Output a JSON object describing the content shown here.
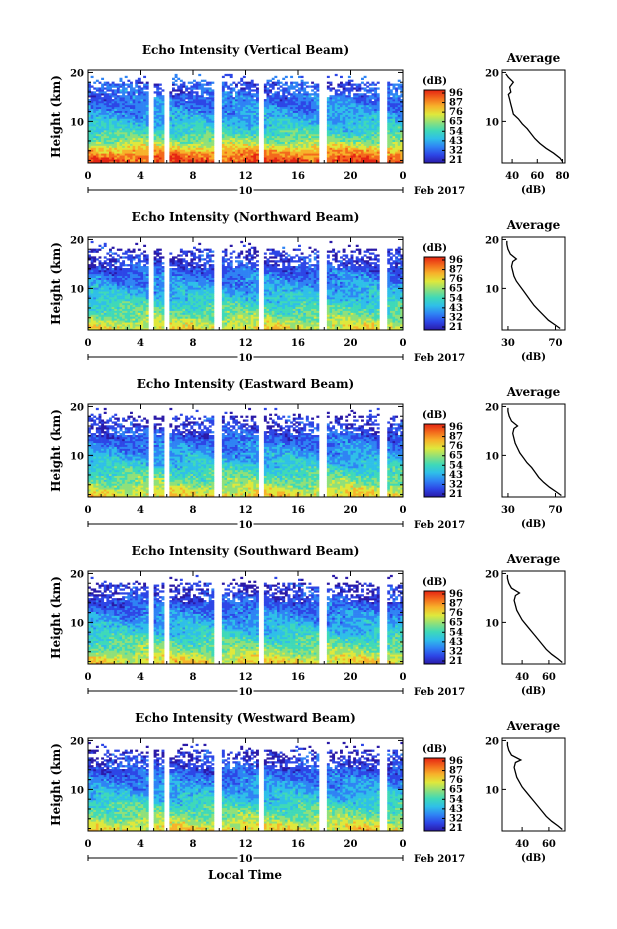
{
  "figure": {
    "date_tick": "10",
    "month_label": "Feb 2017",
    "xlabel": "Local Time",
    "colorbar_unit": "(dB)",
    "colorbar_ticks": [
      "96",
      "87",
      "76",
      "65",
      "54",
      "43",
      "32",
      "21"
    ],
    "colormap": [
      "#2a1aa8",
      "#2d46e6",
      "#2f83f4",
      "#2fbfe8",
      "#3fd9b8",
      "#8fe07a",
      "#dfe83c",
      "#f7b22a",
      "#f36a1c",
      "#e52412"
    ]
  },
  "chart_data": [
    {
      "type": "heatmap",
      "title": "Echo Intensity (Vertical Beam)",
      "ylabel": "Height (km)",
      "x_ticks": [
        "0",
        "4",
        "8",
        "12",
        "16",
        "20",
        "0"
      ],
      "y_ticks": [
        "20",
        "10"
      ],
      "xlim": [
        0,
        24
      ],
      "ylim": [
        1.5,
        20.5
      ],
      "data_gaps_hours": [
        [
          4.6,
          5.0
        ],
        [
          5.8,
          6.2
        ],
        [
          9.7,
          10.1
        ],
        [
          13.0,
          13.4
        ],
        [
          17.7,
          18.1
        ],
        [
          22.3,
          22.7
        ]
      ],
      "intensity_profile_db": [
        [
          2,
          92
        ],
        [
          4,
          80
        ],
        [
          6,
          62
        ],
        [
          8,
          52
        ],
        [
          10,
          45
        ],
        [
          12,
          40
        ],
        [
          14,
          36
        ],
        [
          16,
          33
        ],
        [
          18,
          30
        ],
        [
          20,
          28
        ]
      ],
      "average": {
        "title": "Average",
        "xlabel": "(dB)",
        "x_ticks": [
          "40",
          "60",
          "80"
        ],
        "y_ticks": [
          "20",
          "10"
        ],
        "xlim": [
          32,
          82
        ],
        "profile": [
          [
            1.8,
            80
          ],
          [
            2.5,
            78
          ],
          [
            3.5,
            73
          ],
          [
            4.5,
            67
          ],
          [
            5.5,
            62
          ],
          [
            6.5,
            58
          ],
          [
            7.5,
            55
          ],
          [
            8.5,
            52
          ],
          [
            9.5,
            48
          ],
          [
            10.5,
            45
          ],
          [
            11.5,
            41
          ],
          [
            12.5,
            40
          ],
          [
            13.5,
            39
          ],
          [
            14.5,
            38
          ],
          [
            15.5,
            37
          ],
          [
            16,
            39
          ],
          [
            17,
            38
          ],
          [
            18,
            41
          ],
          [
            19,
            37
          ],
          [
            19.7,
            35
          ]
        ]
      }
    },
    {
      "type": "heatmap",
      "title": "Echo Intensity (Northward Beam)",
      "ylabel": "Height (km)",
      "x_ticks": [
        "0",
        "4",
        "8",
        "12",
        "16",
        "20",
        "0"
      ],
      "y_ticks": [
        "20",
        "10"
      ],
      "xlim": [
        0,
        24
      ],
      "ylim": [
        1.5,
        20.5
      ],
      "data_gaps_hours": [
        [
          4.6,
          5.0
        ],
        [
          5.8,
          6.2
        ],
        [
          9.7,
          10.1
        ],
        [
          13.0,
          13.4
        ],
        [
          17.7,
          18.1
        ],
        [
          22.3,
          22.7
        ]
      ],
      "intensity_profile_db": [
        [
          2,
          72
        ],
        [
          4,
          62
        ],
        [
          6,
          55
        ],
        [
          8,
          48
        ],
        [
          10,
          42
        ],
        [
          12,
          37
        ],
        [
          14,
          32
        ],
        [
          16,
          27
        ],
        [
          18,
          24
        ],
        [
          20,
          22
        ]
      ],
      "average": {
        "title": "Average",
        "xlabel": "(dB)",
        "x_ticks": [
          "30",
          "70"
        ],
        "y_ticks": [
          "20",
          "10"
        ],
        "xlim": [
          25,
          78
        ],
        "profile": [
          [
            1.8,
            74
          ],
          [
            2.5,
            70
          ],
          [
            3.5,
            64
          ],
          [
            4.5,
            60
          ],
          [
            5.5,
            56
          ],
          [
            6.5,
            52
          ],
          [
            7.5,
            49
          ],
          [
            8.5,
            46
          ],
          [
            9.5,
            43
          ],
          [
            10.5,
            40
          ],
          [
            11.5,
            37
          ],
          [
            12.5,
            35
          ],
          [
            13.5,
            34
          ],
          [
            14.5,
            33
          ],
          [
            15.5,
            34
          ],
          [
            16,
            37
          ],
          [
            17,
            32
          ],
          [
            18,
            30
          ],
          [
            19,
            29
          ],
          [
            19.7,
            29
          ]
        ]
      }
    },
    {
      "type": "heatmap",
      "title": "Echo Intensity (Eastward Beam)",
      "ylabel": "Height (km)",
      "x_ticks": [
        "0",
        "4",
        "8",
        "12",
        "16",
        "20",
        "0"
      ],
      "y_ticks": [
        "20",
        "10"
      ],
      "xlim": [
        0,
        24
      ],
      "ylim": [
        1.5,
        20.5
      ],
      "data_gaps_hours": [
        [
          4.6,
          5.0
        ],
        [
          5.8,
          6.2
        ],
        [
          9.7,
          10.1
        ],
        [
          13.0,
          13.4
        ],
        [
          17.7,
          18.1
        ],
        [
          22.3,
          22.7
        ]
      ],
      "intensity_profile_db": [
        [
          2,
          74
        ],
        [
          4,
          63
        ],
        [
          6,
          56
        ],
        [
          8,
          48
        ],
        [
          10,
          42
        ],
        [
          12,
          37
        ],
        [
          14,
          32
        ],
        [
          16,
          27
        ],
        [
          18,
          24
        ],
        [
          20,
          22
        ]
      ],
      "average": {
        "title": "Average",
        "xlabel": "(dB)",
        "x_ticks": [
          "30",
          "70"
        ],
        "y_ticks": [
          "20",
          "10"
        ],
        "xlim": [
          25,
          78
        ],
        "profile": [
          [
            1.8,
            75
          ],
          [
            2.5,
            71
          ],
          [
            3.5,
            65
          ],
          [
            4.5,
            60
          ],
          [
            5.5,
            56
          ],
          [
            6.5,
            53
          ],
          [
            7.5,
            50
          ],
          [
            8.5,
            46
          ],
          [
            9.5,
            43
          ],
          [
            10.5,
            40
          ],
          [
            11.5,
            38
          ],
          [
            12.5,
            36
          ],
          [
            13.5,
            35
          ],
          [
            14.5,
            34
          ],
          [
            15.5,
            35
          ],
          [
            16,
            38
          ],
          [
            17,
            33
          ],
          [
            18,
            31
          ],
          [
            19,
            30
          ],
          [
            19.7,
            30
          ]
        ]
      }
    },
    {
      "type": "heatmap",
      "title": "Echo Intensity (Southward Beam)",
      "ylabel": "Height (km)",
      "x_ticks": [
        "0",
        "4",
        "8",
        "12",
        "16",
        "20",
        "0"
      ],
      "y_ticks": [
        "20",
        "10"
      ],
      "xlim": [
        0,
        24
      ],
      "ylim": [
        1.5,
        20.5
      ],
      "data_gaps_hours": [
        [
          4.6,
          5.0
        ],
        [
          5.8,
          6.2
        ],
        [
          9.7,
          10.1
        ],
        [
          13.0,
          13.4
        ],
        [
          17.7,
          18.1
        ],
        [
          22.3,
          22.7
        ]
      ],
      "intensity_profile_db": [
        [
          2,
          74
        ],
        [
          4,
          63
        ],
        [
          6,
          56
        ],
        [
          8,
          48
        ],
        [
          10,
          42
        ],
        [
          12,
          37
        ],
        [
          14,
          32
        ],
        [
          16,
          27
        ],
        [
          18,
          24
        ],
        [
          20,
          22
        ]
      ],
      "average": {
        "title": "Average",
        "xlabel": "(dB)",
        "x_ticks": [
          "40",
          "60"
        ],
        "y_ticks": [
          "20",
          "10"
        ],
        "xlim": [
          25,
          72
        ],
        "profile": [
          [
            1.8,
            70
          ],
          [
            2.5,
            67
          ],
          [
            3.5,
            62
          ],
          [
            4.5,
            58
          ],
          [
            5.5,
            55
          ],
          [
            6.5,
            52
          ],
          [
            7.5,
            49
          ],
          [
            8.5,
            46
          ],
          [
            9.5,
            43
          ],
          [
            10.5,
            40
          ],
          [
            11.5,
            38
          ],
          [
            12.5,
            36
          ],
          [
            13.5,
            35
          ],
          [
            14.5,
            34
          ],
          [
            15.5,
            35
          ],
          [
            16,
            38
          ],
          [
            17,
            32
          ],
          [
            18,
            30
          ],
          [
            19,
            29
          ],
          [
            19.7,
            29
          ]
        ]
      }
    },
    {
      "type": "heatmap",
      "title": "Echo Intensity (Westward Beam)",
      "ylabel": "Height (km)",
      "x_ticks": [
        "0",
        "4",
        "8",
        "12",
        "16",
        "20",
        "0"
      ],
      "y_ticks": [
        "20",
        "10"
      ],
      "xlim": [
        0,
        24
      ],
      "ylim": [
        1.5,
        20.5
      ],
      "data_gaps_hours": [
        [
          4.6,
          5.0
        ],
        [
          5.8,
          6.2
        ],
        [
          9.7,
          10.1
        ],
        [
          13.0,
          13.4
        ],
        [
          17.7,
          18.1
        ],
        [
          22.3,
          22.7
        ]
      ],
      "intensity_profile_db": [
        [
          2,
          74
        ],
        [
          4,
          63
        ],
        [
          6,
          56
        ],
        [
          8,
          48
        ],
        [
          10,
          42
        ],
        [
          12,
          37
        ],
        [
          14,
          32
        ],
        [
          16,
          27
        ],
        [
          18,
          24
        ],
        [
          20,
          22
        ]
      ],
      "average": {
        "title": "Average",
        "xlabel": "(dB)",
        "x_ticks": [
          "40",
          "60"
        ],
        "y_ticks": [
          "20",
          "10"
        ],
        "xlim": [
          25,
          72
        ],
        "profile": [
          [
            1.8,
            70
          ],
          [
            2.5,
            67
          ],
          [
            3.5,
            62
          ],
          [
            4.5,
            58
          ],
          [
            5.5,
            55
          ],
          [
            6.5,
            52
          ],
          [
            7.5,
            49
          ],
          [
            8.5,
            46
          ],
          [
            9.5,
            43
          ],
          [
            10.5,
            40
          ],
          [
            11.5,
            38
          ],
          [
            12.5,
            36
          ],
          [
            13.5,
            35
          ],
          [
            14.5,
            34
          ],
          [
            15.5,
            35
          ],
          [
            16,
            39
          ],
          [
            17,
            32
          ],
          [
            18,
            30
          ],
          [
            19,
            29
          ],
          [
            19.7,
            29
          ]
        ]
      }
    }
  ]
}
